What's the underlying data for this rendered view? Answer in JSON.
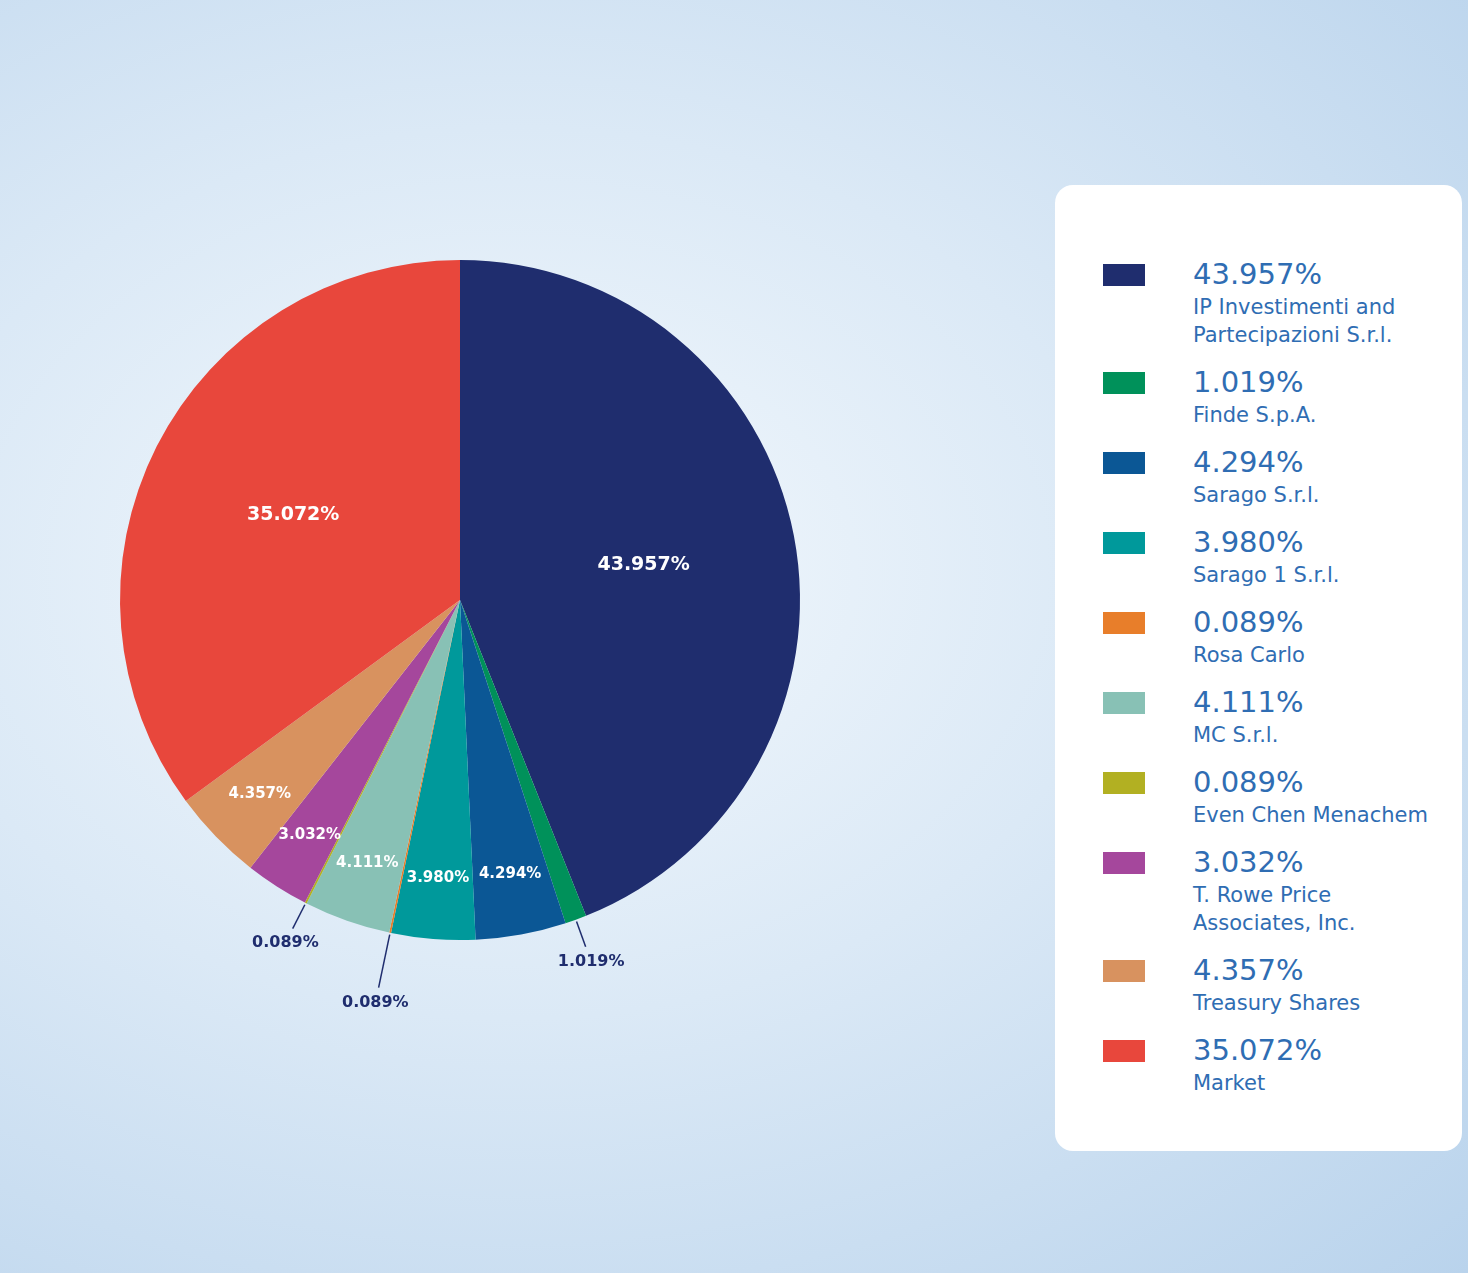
{
  "chart_data": {
    "type": "pie",
    "categories": [
      "IP Investimenti and Partecipazioni S.r.l.",
      "Finde S.p.A.",
      "Sarago S.r.l.",
      "Sarago 1 S.r.l.",
      "Rosa Carlo",
      "MC S.r.l.",
      "Even Chen Menachem",
      "T. Rowe Price Associates, Inc.",
      "Treasury Shares",
      "Market"
    ],
    "values": [
      43.957,
      1.019,
      4.294,
      3.98,
      0.089,
      4.111,
      0.089,
      3.032,
      4.357,
      35.072
    ],
    "value_labels": [
      "43.957%",
      "1.019%",
      "4.294%",
      "3.980%",
      "0.089%",
      "4.111%",
      "0.089%",
      "3.032%",
      "4.357%",
      "35.072%"
    ],
    "colors": [
      "#1f2d6e",
      "#00915a",
      "#0b5795",
      "#00999b",
      "#e87e2a",
      "#88c1b5",
      "#b2b022",
      "#a5479c",
      "#d8925f",
      "#e8473c"
    ],
    "data_labels": true,
    "legend": "right"
  }
}
